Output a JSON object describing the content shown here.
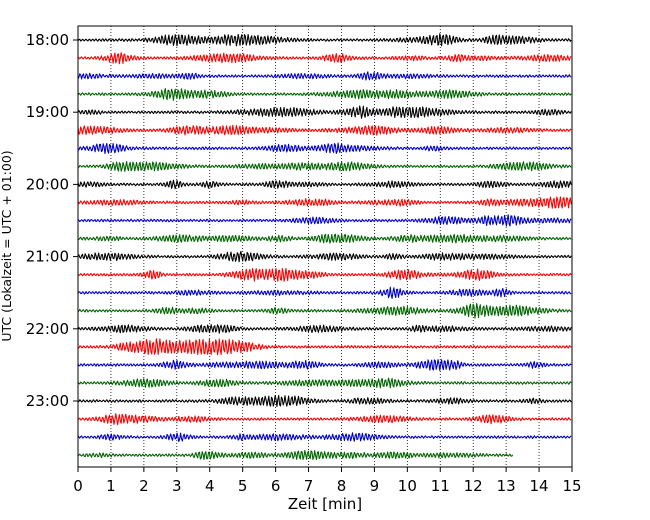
{
  "chart_data": {
    "type": "line",
    "title": "",
    "xlabel": "Zeit  [min]",
    "ylabel": "UTC (Lokalzeit = UTC + 01:00)",
    "xlim": [
      0,
      15
    ],
    "x_ticks": [
      "0",
      "1",
      "2",
      "3",
      "4",
      "5",
      "6",
      "7",
      "8",
      "9",
      "10",
      "11",
      "12",
      "13",
      "14",
      "15"
    ],
    "y_tick_labels": [
      "18:00",
      "19:00",
      "20:00",
      "21:00",
      "22:00",
      "23:00"
    ],
    "grid": "vertical dotted at each minute",
    "trace_interval_minutes": 15,
    "start_time": "18:00",
    "last_trace_end_minute": 13.2,
    "colors": [
      "#000000",
      "#ff0000",
      "#0000cc",
      "#006600"
    ],
    "traces": [
      {
        "start": "18:00",
        "color": "#000000"
      },
      {
        "start": "18:15",
        "color": "#ff0000"
      },
      {
        "start": "18:30",
        "color": "#0000cc"
      },
      {
        "start": "18:45",
        "color": "#006600"
      },
      {
        "start": "19:00",
        "color": "#000000"
      },
      {
        "start": "19:15",
        "color": "#ff0000"
      },
      {
        "start": "19:30",
        "color": "#0000cc"
      },
      {
        "start": "19:45",
        "color": "#006600"
      },
      {
        "start": "20:00",
        "color": "#000000"
      },
      {
        "start": "20:15",
        "color": "#ff0000"
      },
      {
        "start": "20:30",
        "color": "#0000cc"
      },
      {
        "start": "20:45",
        "color": "#006600"
      },
      {
        "start": "21:00",
        "color": "#000000"
      },
      {
        "start": "21:15",
        "color": "#ff0000"
      },
      {
        "start": "21:30",
        "color": "#0000cc"
      },
      {
        "start": "21:45",
        "color": "#006600"
      },
      {
        "start": "22:00",
        "color": "#000000"
      },
      {
        "start": "22:15",
        "color": "#ff0000"
      },
      {
        "start": "22:30",
        "color": "#0000cc"
      },
      {
        "start": "22:45",
        "color": "#006600"
      },
      {
        "start": "23:00",
        "color": "#000000"
      },
      {
        "start": "23:15",
        "color": "#ff0000"
      },
      {
        "start": "23:30",
        "color": "#0000cc"
      },
      {
        "start": "23:45",
        "color": "#006600"
      }
    ]
  }
}
